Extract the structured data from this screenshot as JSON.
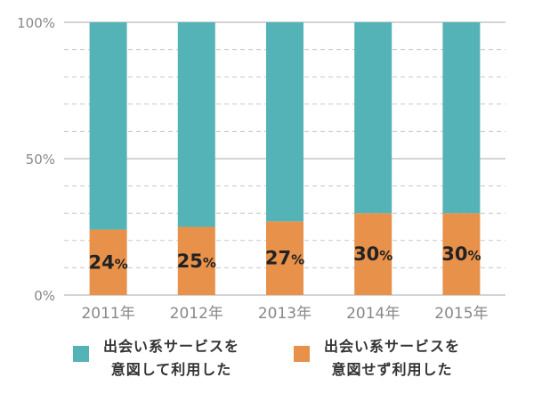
{
  "chart_data": {
    "type": "bar",
    "stacked": true,
    "categories": [
      "2011年",
      "2012年",
      "2013年",
      "2014年",
      "2015年"
    ],
    "series": [
      {
        "name": "出会い系サービスを意図せず利用した",
        "values": [
          24,
          25,
          27,
          30,
          30
        ],
        "color": "#e8914a"
      },
      {
        "name": "出会い系サービスを意図して利用した",
        "values": [
          76,
          75,
          73,
          70,
          70
        ],
        "color": "#54b3b6"
      }
    ],
    "data_labels": [
      "24",
      "25",
      "27",
      "30",
      "30"
    ],
    "data_label_unit": "%",
    "y_ticks": [
      "0%",
      "50%",
      "100%"
    ],
    "ylim": [
      0,
      100
    ],
    "grid": "dashed minor lines every 10%, solid at 0/50/100",
    "legend_position": "bottom"
  },
  "legend": {
    "items": [
      {
        "line1": "出会い系サービスを",
        "line2": "意図して利用した",
        "color": "#54b3b6"
      },
      {
        "line1": "出会い系サービスを",
        "line2": "意図せず利用した",
        "color": "#e8914a"
      }
    ]
  }
}
